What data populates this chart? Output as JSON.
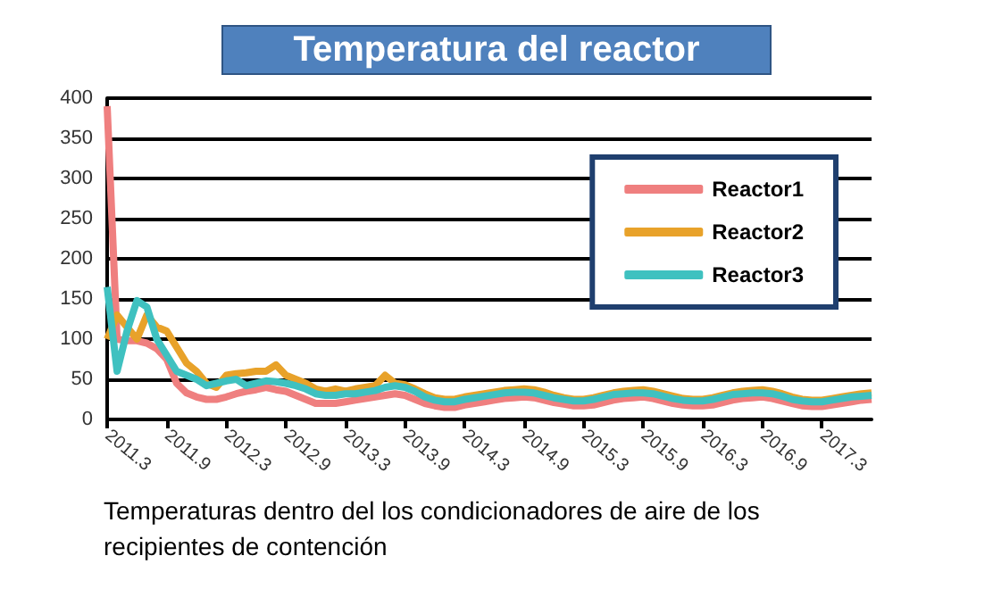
{
  "chart_data": {
    "type": "line",
    "title": "Temperatura del reactor",
    "annotations": [
      "Temperaturas dentro del los condicionadores de aire de los recipientes de contención"
    ],
    "categories": [
      "2011.3",
      null,
      null,
      null,
      null,
      null,
      "2011.9",
      null,
      null,
      null,
      null,
      null,
      "2012.3",
      null,
      null,
      null,
      null,
      null,
      "2012.9",
      null,
      null,
      null,
      null,
      null,
      "2013.3",
      null,
      null,
      null,
      null,
      null,
      "2013.9",
      null,
      null,
      null,
      null,
      null,
      "2014.3",
      null,
      null,
      null,
      null,
      null,
      "2014.9",
      null,
      null,
      null,
      null,
      null,
      "2015.3",
      null,
      null,
      null,
      null,
      null,
      "2015.9",
      null,
      null,
      null,
      null,
      null,
      "2016.3",
      null,
      null,
      null,
      null,
      null,
      "2016.9",
      null,
      null,
      null,
      null,
      null,
      "2017.3",
      null,
      null,
      null,
      null,
      null
    ],
    "series": [
      {
        "name": "Reactor1",
        "color": "#ef7f7f",
        "values": [
          390,
          100,
          98,
          98,
          95,
          88,
          75,
          45,
          33,
          28,
          25,
          25,
          28,
          32,
          35,
          37,
          40,
          37,
          35,
          30,
          25,
          20,
          20,
          20,
          22,
          24,
          26,
          28,
          30,
          32,
          30,
          25,
          20,
          17,
          15,
          15,
          18,
          20,
          22,
          24,
          26,
          27,
          28,
          27,
          24,
          21,
          19,
          17,
          17,
          18,
          21,
          24,
          26,
          27,
          28,
          26,
          23,
          20,
          18,
          17,
          17,
          18,
          21,
          24,
          26,
          27,
          28,
          26,
          23,
          20,
          17,
          16,
          16,
          18,
          20,
          22,
          24,
          25
        ]
      },
      {
        "name": "Reactor2",
        "color": "#e8a22a",
        "values": [
          100,
          130,
          115,
          100,
          130,
          115,
          110,
          90,
          70,
          60,
          45,
          40,
          55,
          57,
          58,
          60,
          60,
          68,
          55,
          50,
          45,
          38,
          35,
          38,
          35,
          38,
          40,
          42,
          55,
          45,
          43,
          38,
          32,
          27,
          25,
          25,
          28,
          30,
          32,
          34,
          36,
          37,
          38,
          37,
          34,
          30,
          27,
          25,
          25,
          27,
          30,
          33,
          35,
          36,
          37,
          35,
          32,
          29,
          26,
          25,
          25,
          27,
          30,
          33,
          35,
          36,
          37,
          35,
          32,
          28,
          25,
          24,
          24,
          26,
          28,
          30,
          32,
          33
        ]
      },
      {
        "name": "Reactor3",
        "color": "#3fc1c0",
        "values": [
          165,
          60,
          110,
          148,
          140,
          100,
          80,
          60,
          55,
          50,
          42,
          45,
          48,
          50,
          42,
          45,
          48,
          47,
          45,
          42,
          38,
          32,
          30,
          30,
          32,
          32,
          34,
          36,
          40,
          42,
          40,
          35,
          28,
          24,
          22,
          22,
          25,
          27,
          29,
          31,
          33,
          34,
          34,
          33,
          30,
          27,
          25,
          23,
          23,
          25,
          28,
          31,
          32,
          33,
          33,
          32,
          29,
          26,
          24,
          23,
          23,
          25,
          28,
          31,
          32,
          33,
          33,
          32,
          29,
          25,
          23,
          22,
          22,
          24,
          26,
          28,
          29,
          30
        ]
      }
    ],
    "ylim": [
      0,
      400
    ],
    "yticks": [
      0,
      50,
      100,
      150,
      200,
      250,
      300,
      350,
      400
    ],
    "grid": "y",
    "legend": "top right",
    "marker": "none",
    "line_style": "solid"
  }
}
